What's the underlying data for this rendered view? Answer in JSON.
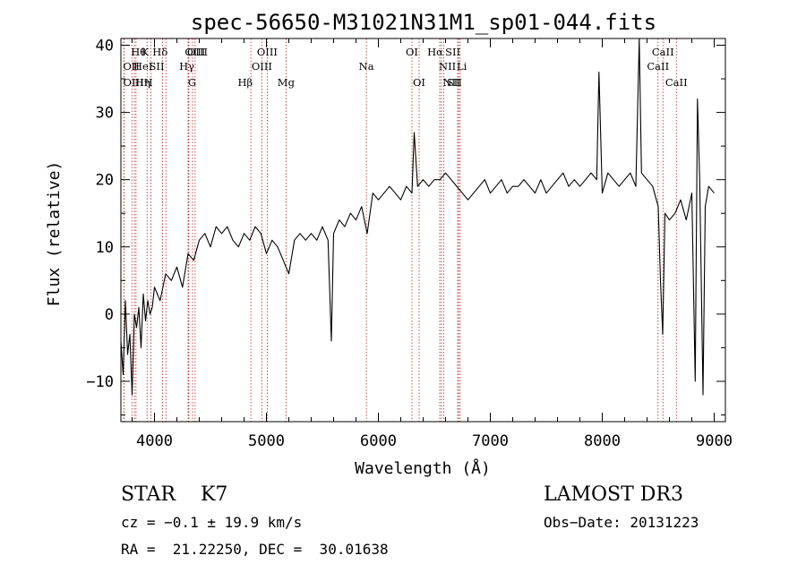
{
  "chart_data": {
    "type": "line",
    "title": "spec-56650-M31021N31M1_sp01-044.fits",
    "xlabel": "Wavelength (Å)",
    "ylabel": "Flux (relative)",
    "xlim": [
      3700,
      9100
    ],
    "ylim": [
      -16,
      41
    ],
    "x_ticks": [
      4000,
      5000,
      6000,
      7000,
      8000,
      9000
    ],
    "y_ticks": [
      -10,
      0,
      10,
      20,
      30,
      40
    ],
    "grid": false,
    "line_color": "#000000",
    "marker_color": "#b22222",
    "series": [
      {
        "x": [
          3700,
          3720,
          3740,
          3760,
          3780,
          3800,
          3820,
          3840,
          3860,
          3880,
          3900,
          3920,
          3940,
          3960,
          3980,
          4000,
          4050,
          4100,
          4150,
          4200,
          4250,
          4300,
          4350,
          4400,
          4450,
          4500,
          4550,
          4600,
          4650,
          4700,
          4750,
          4800,
          4850,
          4900,
          4950,
          5000,
          5050,
          5100,
          5150,
          5200,
          5250,
          5300,
          5350,
          5400,
          5450,
          5500,
          5550,
          5580,
          5600,
          5650,
          5700,
          5750,
          5800,
          5850,
          5900,
          5950,
          6000,
          6050,
          6100,
          6150,
          6200,
          6250,
          6300,
          6320,
          6350,
          6400,
          6450,
          6500,
          6550,
          6600,
          6650,
          6700,
          6750,
          6800,
          6850,
          6900,
          6950,
          7000,
          7050,
          7100,
          7150,
          7200,
          7250,
          7300,
          7350,
          7400,
          7450,
          7500,
          7550,
          7600,
          7650,
          7700,
          7750,
          7800,
          7850,
          7900,
          7950,
          7970,
          8000,
          8050,
          8100,
          8150,
          8200,
          8250,
          8300,
          8330,
          8350,
          8400,
          8450,
          8500,
          8520,
          8540,
          8560,
          8600,
          8650,
          8700,
          8750,
          8800,
          8830,
          8850,
          8870,
          8900,
          8920,
          8950,
          9000
        ],
        "y": [
          -4,
          -9,
          2,
          -6,
          -3,
          -12,
          0,
          -2,
          1,
          -5,
          3,
          -1,
          2,
          0,
          1,
          4,
          2,
          6,
          5,
          7,
          4,
          9,
          8,
          11,
          12,
          10,
          13,
          12,
          13,
          11,
          10,
          12,
          11,
          13,
          12,
          9,
          11,
          10,
          8,
          6,
          11,
          12,
          11,
          12,
          11,
          13,
          11,
          -4,
          12,
          14,
          13,
          15,
          14,
          16,
          12,
          18,
          17,
          18,
          19,
          18,
          17,
          19,
          18,
          27,
          19,
          20,
          19,
          20,
          20,
          21,
          20,
          19,
          18,
          17,
          18,
          19,
          20,
          18,
          19,
          20,
          18,
          19,
          19,
          20,
          19,
          18,
          20,
          18,
          19,
          20,
          21,
          19,
          20,
          19,
          20,
          21,
          20,
          36,
          18,
          21,
          20,
          19,
          20,
          21,
          19,
          42,
          21,
          20,
          19,
          16,
          5,
          -3,
          15,
          14,
          15,
          17,
          14,
          18,
          -10,
          32,
          20,
          -12,
          16,
          19,
          18
        ]
      }
    ],
    "line_markers": [
      {
        "label": "Hθ",
        "x": 3798,
        "row": 0,
        "side": "r"
      },
      {
        "label": "OII",
        "x": 3727,
        "row": 1,
        "side": "r"
      },
      {
        "label": "OIII",
        "x": 3728,
        "row": 2,
        "side": "r"
      },
      {
        "label": "HeI",
        "x": 3820,
        "row": 1,
        "side": "r"
      },
      {
        "label": "Hη",
        "x": 3835,
        "row": 2,
        "side": "r"
      },
      {
        "label": "K",
        "x": 3934,
        "row": 0,
        "side": "l"
      },
      {
        "label": "SII",
        "x": 4072,
        "row": 1,
        "side": "l"
      },
      {
        "label": "H",
        "x": 3969,
        "row": 2,
        "side": "l"
      },
      {
        "label": "Hδ",
        "x": 4102,
        "row": 0,
        "side": "l"
      },
      {
        "label": "OIII",
        "x": 4300,
        "row": 0,
        "side": "r"
      },
      {
        "label": "Hγ",
        "x": 4340,
        "row": 1,
        "side": "l"
      },
      {
        "label": "G",
        "x": 4307,
        "row": 2,
        "side": "r"
      },
      {
        "label": "OIII",
        "x": 4363,
        "row": 0,
        "side": "c"
      },
      {
        "label": "Hβ",
        "x": 4861,
        "row": 2,
        "side": "l"
      },
      {
        "label": "OIII",
        "x": 4959,
        "row": 1,
        "side": "c"
      },
      {
        "label": "OIII",
        "x": 5007,
        "row": 0,
        "side": "c"
      },
      {
        "label": "Mg",
        "x": 5175,
        "row": 2,
        "side": "c"
      },
      {
        "label": "Na",
        "x": 5893,
        "row": 1,
        "side": "c"
      },
      {
        "label": "OI",
        "x": 6300,
        "row": 0,
        "side": "c"
      },
      {
        "label": "OI",
        "x": 6364,
        "row": 2,
        "side": "c"
      },
      {
        "label": "Hα",
        "x": 6563,
        "row": 0,
        "side": "l"
      },
      {
        "label": "NII",
        "x": 6548,
        "row": 1,
        "side": "r"
      },
      {
        "label": "NII",
        "x": 6584,
        "row": 2,
        "side": "r"
      },
      {
        "label": "SII",
        "x": 6717,
        "row": 0,
        "side": "l"
      },
      {
        "label": "Li",
        "x": 6708,
        "row": 1,
        "side": "r"
      },
      {
        "label": "SII",
        "x": 6731,
        "row": 2,
        "side": "l"
      },
      {
        "label": "CaII",
        "x": 8498,
        "row": 1,
        "side": "c"
      },
      {
        "label": "CaII",
        "x": 8542,
        "row": 0,
        "side": "c"
      },
      {
        "label": "CaII",
        "x": 8662,
        "row": 2,
        "side": "c"
      }
    ]
  },
  "info": {
    "class_line": "STAR    K7",
    "release": "LAMOST DR3",
    "cz": "cz = −0.1 ± 19.9 km/s",
    "obs_date": "Obs−Date: 20131223",
    "coords": "RA =  21.22250, DEC =  30.01638"
  }
}
